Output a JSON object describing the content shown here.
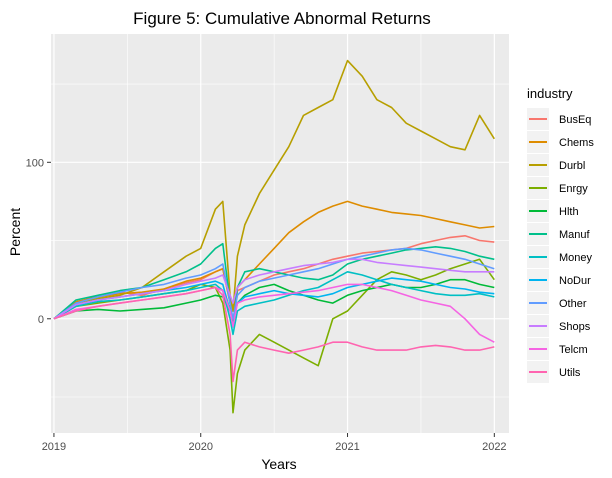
{
  "chart_data": {
    "type": "line",
    "title": "Figure 5: Cumulative Abnormal Returns",
    "xlabel": "Years",
    "ylabel": "Percent",
    "x_ticks": [
      2019,
      2020,
      2021,
      2022
    ],
    "y_ticks": [
      0,
      100
    ],
    "xlim": [
      2018.98,
      2022.1
    ],
    "ylim": [
      -73,
      182
    ],
    "grid": true,
    "panel_background": "#EBEBEB",
    "gridline_color": "#FFFFFF",
    "legend": {
      "title": "industry",
      "position": "right"
    },
    "x": [
      2019.0,
      2019.15,
      2019.3,
      2019.45,
      2019.6,
      2019.75,
      2019.9,
      2020.0,
      2020.1,
      2020.15,
      2020.2,
      2020.22,
      2020.25,
      2020.3,
      2020.4,
      2020.5,
      2020.6,
      2020.7,
      2020.8,
      2020.9,
      2021.0,
      2021.1,
      2021.2,
      2021.3,
      2021.4,
      2021.5,
      2021.6,
      2021.7,
      2021.8,
      2021.9,
      2022.0
    ],
    "series": [
      {
        "name": "BusEq",
        "color": "#F8766D",
        "values": [
          0,
          10,
          15,
          17,
          15,
          19,
          23,
          25,
          30,
          32,
          10,
          -5,
          18,
          20,
          24,
          28,
          30,
          32,
          35,
          38,
          40,
          42,
          43,
          44,
          45,
          48,
          50,
          52,
          53,
          50,
          49
        ]
      },
      {
        "name": "Chems",
        "color": "#DE8C00",
        "values": [
          0,
          11,
          14,
          16,
          17,
          19,
          24,
          26,
          30,
          32,
          10,
          5,
          20,
          25,
          35,
          45,
          55,
          62,
          68,
          72,
          75,
          72,
          70,
          68,
          67,
          66,
          64,
          62,
          60,
          58,
          59
        ]
      },
      {
        "name": "Durbl",
        "color": "#B79F00",
        "values": [
          0,
          10,
          13,
          15,
          20,
          30,
          40,
          45,
          70,
          75,
          15,
          5,
          40,
          60,
          80,
          95,
          110,
          130,
          135,
          140,
          165,
          155,
          140,
          135,
          125,
          120,
          115,
          110,
          108,
          130,
          115
        ]
      },
      {
        "name": "Enrgy",
        "color": "#7CAE00",
        "values": [
          0,
          8,
          10,
          12,
          14,
          16,
          18,
          22,
          20,
          10,
          -20,
          -60,
          -35,
          -20,
          -10,
          -15,
          -20,
          -25,
          -30,
          0,
          5,
          15,
          25,
          30,
          28,
          25,
          28,
          32,
          35,
          38,
          25
        ]
      },
      {
        "name": "Hlth",
        "color": "#00BA38",
        "values": [
          0,
          5,
          6,
          5,
          6,
          7,
          10,
          12,
          15,
          14,
          5,
          0,
          10,
          15,
          20,
          22,
          18,
          15,
          12,
          10,
          15,
          18,
          20,
          22,
          20,
          20,
          22,
          25,
          25,
          22,
          20
        ]
      },
      {
        "name": "Manuf",
        "color": "#00C08B",
        "values": [
          0,
          12,
          15,
          18,
          20,
          25,
          30,
          35,
          45,
          48,
          10,
          -5,
          20,
          30,
          32,
          30,
          28,
          26,
          25,
          28,
          35,
          38,
          40,
          42,
          44,
          45,
          46,
          45,
          43,
          40,
          38
        ]
      },
      {
        "name": "Money",
        "color": "#00BFC4",
        "values": [
          0,
          8,
          11,
          12,
          14,
          16,
          18,
          20,
          22,
          18,
          0,
          -10,
          5,
          8,
          10,
          12,
          15,
          18,
          20,
          25,
          30,
          28,
          25,
          22,
          20,
          18,
          16,
          15,
          15,
          16,
          14
        ]
      },
      {
        "name": "NoDur",
        "color": "#00B4F0",
        "values": [
          0,
          9,
          12,
          14,
          16,
          18,
          20,
          22,
          24,
          22,
          5,
          0,
          10,
          14,
          16,
          18,
          16,
          15,
          14,
          16,
          20,
          22,
          24,
          26,
          25,
          24,
          22,
          20,
          19,
          17,
          16
        ]
      },
      {
        "name": "Other",
        "color": "#619CFF",
        "values": [
          0,
          10,
          14,
          17,
          20,
          22,
          26,
          28,
          32,
          35,
          10,
          0,
          15,
          20,
          24,
          26,
          28,
          30,
          32,
          35,
          38,
          40,
          42,
          44,
          45,
          44,
          42,
          40,
          38,
          35,
          32
        ]
      },
      {
        "name": "Shops",
        "color": "#C77CFF",
        "values": [
          0,
          9,
          12,
          14,
          16,
          18,
          22,
          24,
          26,
          28,
          15,
          10,
          20,
          25,
          28,
          30,
          32,
          34,
          35,
          36,
          38,
          38,
          36,
          35,
          34,
          33,
          32,
          31,
          30,
          30,
          30
        ]
      },
      {
        "name": "Telcm",
        "color": "#F564E3",
        "values": [
          0,
          6,
          8,
          10,
          12,
          14,
          16,
          18,
          20,
          18,
          5,
          -5,
          10,
          12,
          14,
          15,
          16,
          17,
          18,
          20,
          22,
          22,
          20,
          18,
          15,
          12,
          10,
          8,
          0,
          -10,
          -15
        ]
      },
      {
        "name": "Utils",
        "color": "#FF64B0",
        "values": [
          0,
          5,
          8,
          10,
          12,
          14,
          16,
          18,
          20,
          15,
          -10,
          -40,
          -20,
          -15,
          -18,
          -20,
          -22,
          -20,
          -18,
          -15,
          -15,
          -18,
          -20,
          -20,
          -20,
          -18,
          -17,
          -18,
          -20,
          -20,
          -18
        ]
      }
    ]
  }
}
